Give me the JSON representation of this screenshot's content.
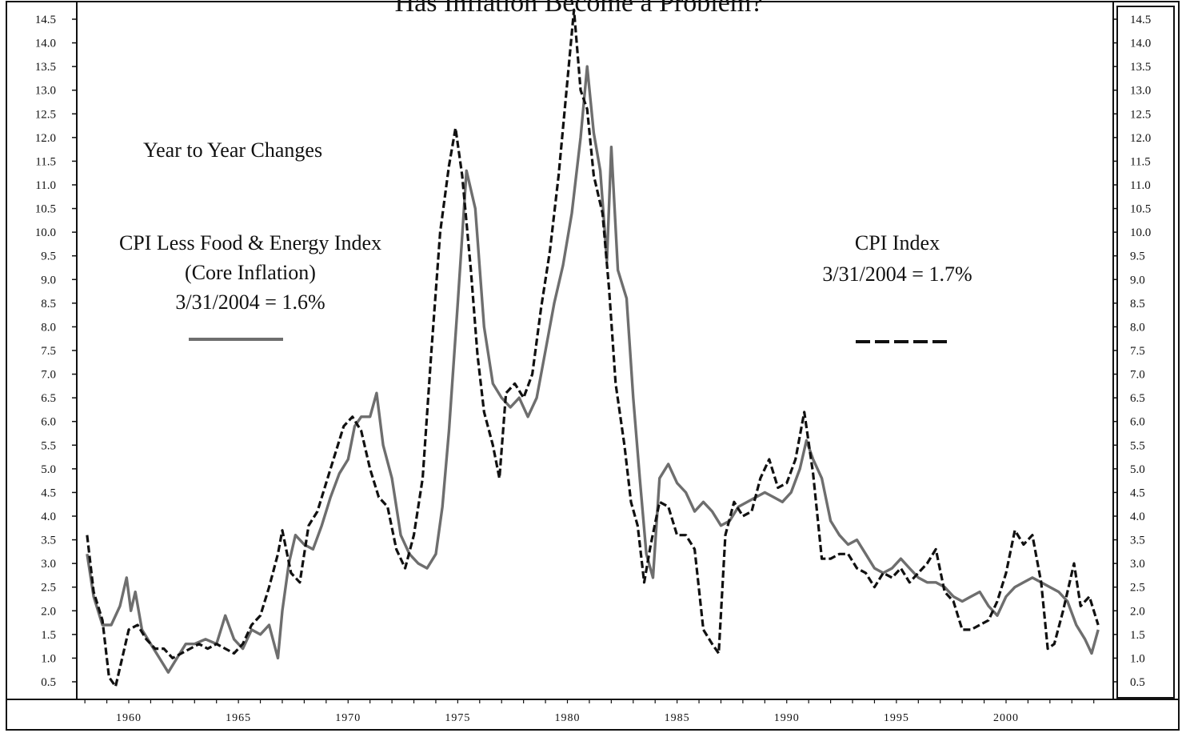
{
  "chart_data": {
    "type": "line",
    "title": "Has Inflation Become a Problem?",
    "ylim": [
      0,
      15
    ],
    "yticks_left": [
      "14.5",
      "14.0",
      "13.5",
      "13.0",
      "12.5",
      "12.0",
      "11.5",
      "11.0",
      "10.5",
      "10.0",
      "9.5",
      "9.0",
      "8.5",
      "8.0",
      "7.5",
      "7.0",
      "6.5",
      "6.0",
      "5.5",
      "5.0",
      "4.5",
      "4.0",
      "3.5",
      "3.0",
      "2.5",
      "2.0",
      "1.5",
      "1.0",
      "0.5"
    ],
    "yticks_right": [
      "14.5",
      "14.0",
      "13.5",
      "13.0",
      "12.5",
      "12.0",
      "11.5",
      "11.0",
      "10.5",
      "10.0",
      "9.5",
      "9.0",
      "8.5",
      "8.0",
      "7.5",
      "7.0",
      "6.5",
      "6.0",
      "5.5",
      "5.0",
      "4.5",
      "4.0",
      "3.5",
      "3.0",
      "2.5",
      "2.0",
      "1.5",
      "1.0",
      "0.5"
    ],
    "xlim": [
      1957,
      2005
    ],
    "xticks": [
      "1960",
      "1965",
      "1970",
      "1975",
      "1980",
      "1985",
      "1990",
      "1995",
      "2000"
    ],
    "annotations": {
      "heading": "Year to Year Changes",
      "core_line1": "CPI Less Food & Energy Index",
      "core_line2": "(Core Inflation)",
      "core_line3": "3/31/2004 = 1.6%",
      "cpi_line1": "CPI Index",
      "cpi_line2": "3/31/2004 = 1.7%"
    },
    "legend_placement": "inline-annotations",
    "grid": false,
    "series": [
      {
        "key": "core",
        "color": "#6e6e6e",
        "style": "solid",
        "points": [
          [
            1958.1,
            3.2
          ],
          [
            1958.4,
            2.3
          ],
          [
            1958.8,
            1.7
          ],
          [
            1959.2,
            1.7
          ],
          [
            1959.6,
            2.1
          ],
          [
            1959.9,
            2.7
          ],
          [
            1960.1,
            2.0
          ],
          [
            1960.3,
            2.4
          ],
          [
            1960.6,
            1.6
          ],
          [
            1961.0,
            1.3
          ],
          [
            1961.4,
            1.0
          ],
          [
            1961.8,
            0.7
          ],
          [
            1962.2,
            1.0
          ],
          [
            1962.6,
            1.3
          ],
          [
            1963.0,
            1.3
          ],
          [
            1963.5,
            1.4
          ],
          [
            1964.0,
            1.3
          ],
          [
            1964.4,
            1.9
          ],
          [
            1964.8,
            1.4
          ],
          [
            1965.2,
            1.2
          ],
          [
            1965.6,
            1.6
          ],
          [
            1966.0,
            1.5
          ],
          [
            1966.4,
            1.7
          ],
          [
            1966.8,
            1.0
          ],
          [
            1967.0,
            2.0
          ],
          [
            1967.3,
            3.0
          ],
          [
            1967.6,
            3.6
          ],
          [
            1968.0,
            3.4
          ],
          [
            1968.4,
            3.3
          ],
          [
            1968.8,
            3.8
          ],
          [
            1969.2,
            4.4
          ],
          [
            1969.6,
            4.9
          ],
          [
            1970.0,
            5.2
          ],
          [
            1970.3,
            5.9
          ],
          [
            1970.6,
            6.1
          ],
          [
            1971.0,
            6.1
          ],
          [
            1971.3,
            6.6
          ],
          [
            1971.6,
            5.5
          ],
          [
            1972.0,
            4.8
          ],
          [
            1972.4,
            3.6
          ],
          [
            1972.8,
            3.2
          ],
          [
            1973.2,
            3.0
          ],
          [
            1973.6,
            2.9
          ],
          [
            1974.0,
            3.2
          ],
          [
            1974.3,
            4.2
          ],
          [
            1974.6,
            5.8
          ],
          [
            1975.0,
            8.5
          ],
          [
            1975.4,
            11.3
          ],
          [
            1975.8,
            10.5
          ],
          [
            1976.2,
            8.0
          ],
          [
            1976.6,
            6.8
          ],
          [
            1977.0,
            6.5
          ],
          [
            1977.4,
            6.3
          ],
          [
            1977.8,
            6.5
          ],
          [
            1978.2,
            6.1
          ],
          [
            1978.6,
            6.5
          ],
          [
            1979.0,
            7.5
          ],
          [
            1979.4,
            8.5
          ],
          [
            1979.8,
            9.3
          ],
          [
            1980.2,
            10.4
          ],
          [
            1980.6,
            12.0
          ],
          [
            1980.9,
            13.5
          ],
          [
            1981.2,
            12.1
          ],
          [
            1981.5,
            11.3
          ],
          [
            1981.8,
            9.4
          ],
          [
            1982.0,
            11.8
          ],
          [
            1982.3,
            9.2
          ],
          [
            1982.7,
            8.6
          ],
          [
            1983.0,
            6.5
          ],
          [
            1983.3,
            4.8
          ],
          [
            1983.6,
            3.2
          ],
          [
            1983.9,
            2.7
          ],
          [
            1984.2,
            4.8
          ],
          [
            1984.6,
            5.1
          ],
          [
            1985.0,
            4.7
          ],
          [
            1985.4,
            4.5
          ],
          [
            1985.8,
            4.1
          ],
          [
            1986.2,
            4.3
          ],
          [
            1986.6,
            4.1
          ],
          [
            1987.0,
            3.8
          ],
          [
            1987.4,
            3.9
          ],
          [
            1987.8,
            4.2
          ],
          [
            1988.2,
            4.3
          ],
          [
            1988.6,
            4.4
          ],
          [
            1989.0,
            4.5
          ],
          [
            1989.4,
            4.4
          ],
          [
            1989.8,
            4.3
          ],
          [
            1990.2,
            4.5
          ],
          [
            1990.6,
            5.0
          ],
          [
            1990.9,
            5.6
          ],
          [
            1991.2,
            5.2
          ],
          [
            1991.6,
            4.8
          ],
          [
            1992.0,
            3.9
          ],
          [
            1992.4,
            3.6
          ],
          [
            1992.8,
            3.4
          ],
          [
            1993.2,
            3.5
          ],
          [
            1993.6,
            3.2
          ],
          [
            1994.0,
            2.9
          ],
          [
            1994.4,
            2.8
          ],
          [
            1994.8,
            2.9
          ],
          [
            1995.2,
            3.1
          ],
          [
            1995.6,
            2.9
          ],
          [
            1996.0,
            2.7
          ],
          [
            1996.4,
            2.6
          ],
          [
            1996.8,
            2.6
          ],
          [
            1997.2,
            2.5
          ],
          [
            1997.6,
            2.3
          ],
          [
            1998.0,
            2.2
          ],
          [
            1998.4,
            2.3
          ],
          [
            1998.8,
            2.4
          ],
          [
            1999.2,
            2.1
          ],
          [
            1999.6,
            1.9
          ],
          [
            2000.0,
            2.3
          ],
          [
            2000.4,
            2.5
          ],
          [
            2000.8,
            2.6
          ],
          [
            2001.2,
            2.7
          ],
          [
            2001.6,
            2.6
          ],
          [
            2002.0,
            2.5
          ],
          [
            2002.4,
            2.4
          ],
          [
            2002.8,
            2.2
          ],
          [
            2003.2,
            1.7
          ],
          [
            2003.6,
            1.4
          ],
          [
            2003.9,
            1.1
          ],
          [
            2004.2,
            1.6
          ]
        ]
      },
      {
        "key": "cpi",
        "color": "#111111",
        "style": "dashed",
        "points": [
          [
            1958.1,
            3.6
          ],
          [
            1958.4,
            2.4
          ],
          [
            1958.8,
            1.8
          ],
          [
            1959.1,
            0.6
          ],
          [
            1959.4,
            0.4
          ],
          [
            1959.7,
            1.0
          ],
          [
            1960.0,
            1.6
          ],
          [
            1960.4,
            1.7
          ],
          [
            1960.8,
            1.4
          ],
          [
            1961.2,
            1.2
          ],
          [
            1961.6,
            1.2
          ],
          [
            1962.0,
            1.0
          ],
          [
            1962.4,
            1.1
          ],
          [
            1962.8,
            1.2
          ],
          [
            1963.2,
            1.3
          ],
          [
            1963.6,
            1.2
          ],
          [
            1964.0,
            1.3
          ],
          [
            1964.4,
            1.2
          ],
          [
            1964.8,
            1.1
          ],
          [
            1965.2,
            1.3
          ],
          [
            1965.6,
            1.7
          ],
          [
            1966.0,
            1.9
          ],
          [
            1966.4,
            2.5
          ],
          [
            1966.8,
            3.2
          ],
          [
            1967.0,
            3.7
          ],
          [
            1967.4,
            2.8
          ],
          [
            1967.8,
            2.6
          ],
          [
            1968.2,
            3.8
          ],
          [
            1968.6,
            4.1
          ],
          [
            1969.0,
            4.7
          ],
          [
            1969.4,
            5.3
          ],
          [
            1969.8,
            5.9
          ],
          [
            1970.2,
            6.1
          ],
          [
            1970.6,
            5.8
          ],
          [
            1971.0,
            5.0
          ],
          [
            1971.4,
            4.4
          ],
          [
            1971.8,
            4.2
          ],
          [
            1972.2,
            3.3
          ],
          [
            1972.6,
            2.9
          ],
          [
            1973.0,
            3.6
          ],
          [
            1973.4,
            4.8
          ],
          [
            1973.8,
            7.5
          ],
          [
            1974.2,
            10.0
          ],
          [
            1974.6,
            11.4
          ],
          [
            1974.9,
            12.2
          ],
          [
            1975.2,
            11.2
          ],
          [
            1975.6,
            9.2
          ],
          [
            1975.9,
            7.4
          ],
          [
            1976.2,
            6.2
          ],
          [
            1976.6,
            5.5
          ],
          [
            1976.9,
            4.8
          ],
          [
            1977.2,
            6.6
          ],
          [
            1977.6,
            6.8
          ],
          [
            1978.0,
            6.5
          ],
          [
            1978.4,
            7.0
          ],
          [
            1978.8,
            8.4
          ],
          [
            1979.2,
            9.6
          ],
          [
            1979.6,
            11.2
          ],
          [
            1980.0,
            13.2
          ],
          [
            1980.3,
            14.7
          ],
          [
            1980.6,
            13.0
          ],
          [
            1980.9,
            12.6
          ],
          [
            1981.2,
            11.2
          ],
          [
            1981.6,
            10.4
          ],
          [
            1981.9,
            8.8
          ],
          [
            1982.2,
            6.8
          ],
          [
            1982.6,
            5.5
          ],
          [
            1982.9,
            4.3
          ],
          [
            1983.2,
            3.8
          ],
          [
            1983.5,
            2.6
          ],
          [
            1983.8,
            3.4
          ],
          [
            1984.2,
            4.3
          ],
          [
            1984.6,
            4.2
          ],
          [
            1985.0,
            3.6
          ],
          [
            1985.4,
            3.6
          ],
          [
            1985.8,
            3.3
          ],
          [
            1986.2,
            1.6
          ],
          [
            1986.6,
            1.3
          ],
          [
            1986.9,
            1.1
          ],
          [
            1987.2,
            3.6
          ],
          [
            1987.6,
            4.3
          ],
          [
            1988.0,
            4.0
          ],
          [
            1988.4,
            4.1
          ],
          [
            1988.8,
            4.8
          ],
          [
            1989.2,
            5.2
          ],
          [
            1989.6,
            4.6
          ],
          [
            1990.0,
            4.7
          ],
          [
            1990.4,
            5.2
          ],
          [
            1990.8,
            6.2
          ],
          [
            1991.2,
            4.9
          ],
          [
            1991.6,
            3.1
          ],
          [
            1992.0,
            3.1
          ],
          [
            1992.4,
            3.2
          ],
          [
            1992.8,
            3.2
          ],
          [
            1993.2,
            2.9
          ],
          [
            1993.6,
            2.8
          ],
          [
            1994.0,
            2.5
          ],
          [
            1994.4,
            2.8
          ],
          [
            1994.8,
            2.7
          ],
          [
            1995.2,
            2.9
          ],
          [
            1995.6,
            2.6
          ],
          [
            1996.0,
            2.8
          ],
          [
            1996.4,
            3.0
          ],
          [
            1996.8,
            3.3
          ],
          [
            1997.2,
            2.4
          ],
          [
            1997.6,
            2.2
          ],
          [
            1998.0,
            1.6
          ],
          [
            1998.4,
            1.6
          ],
          [
            1998.8,
            1.7
          ],
          [
            1999.2,
            1.8
          ],
          [
            1999.6,
            2.2
          ],
          [
            2000.0,
            2.8
          ],
          [
            2000.4,
            3.7
          ],
          [
            2000.8,
            3.4
          ],
          [
            2001.2,
            3.6
          ],
          [
            2001.6,
            2.6
          ],
          [
            2001.9,
            1.2
          ],
          [
            2002.2,
            1.3
          ],
          [
            2002.6,
            2.0
          ],
          [
            2002.9,
            2.6
          ],
          [
            2003.1,
            3.0
          ],
          [
            2003.4,
            2.1
          ],
          [
            2003.8,
            2.3
          ],
          [
            2004.2,
            1.7
          ]
        ]
      }
    ]
  }
}
